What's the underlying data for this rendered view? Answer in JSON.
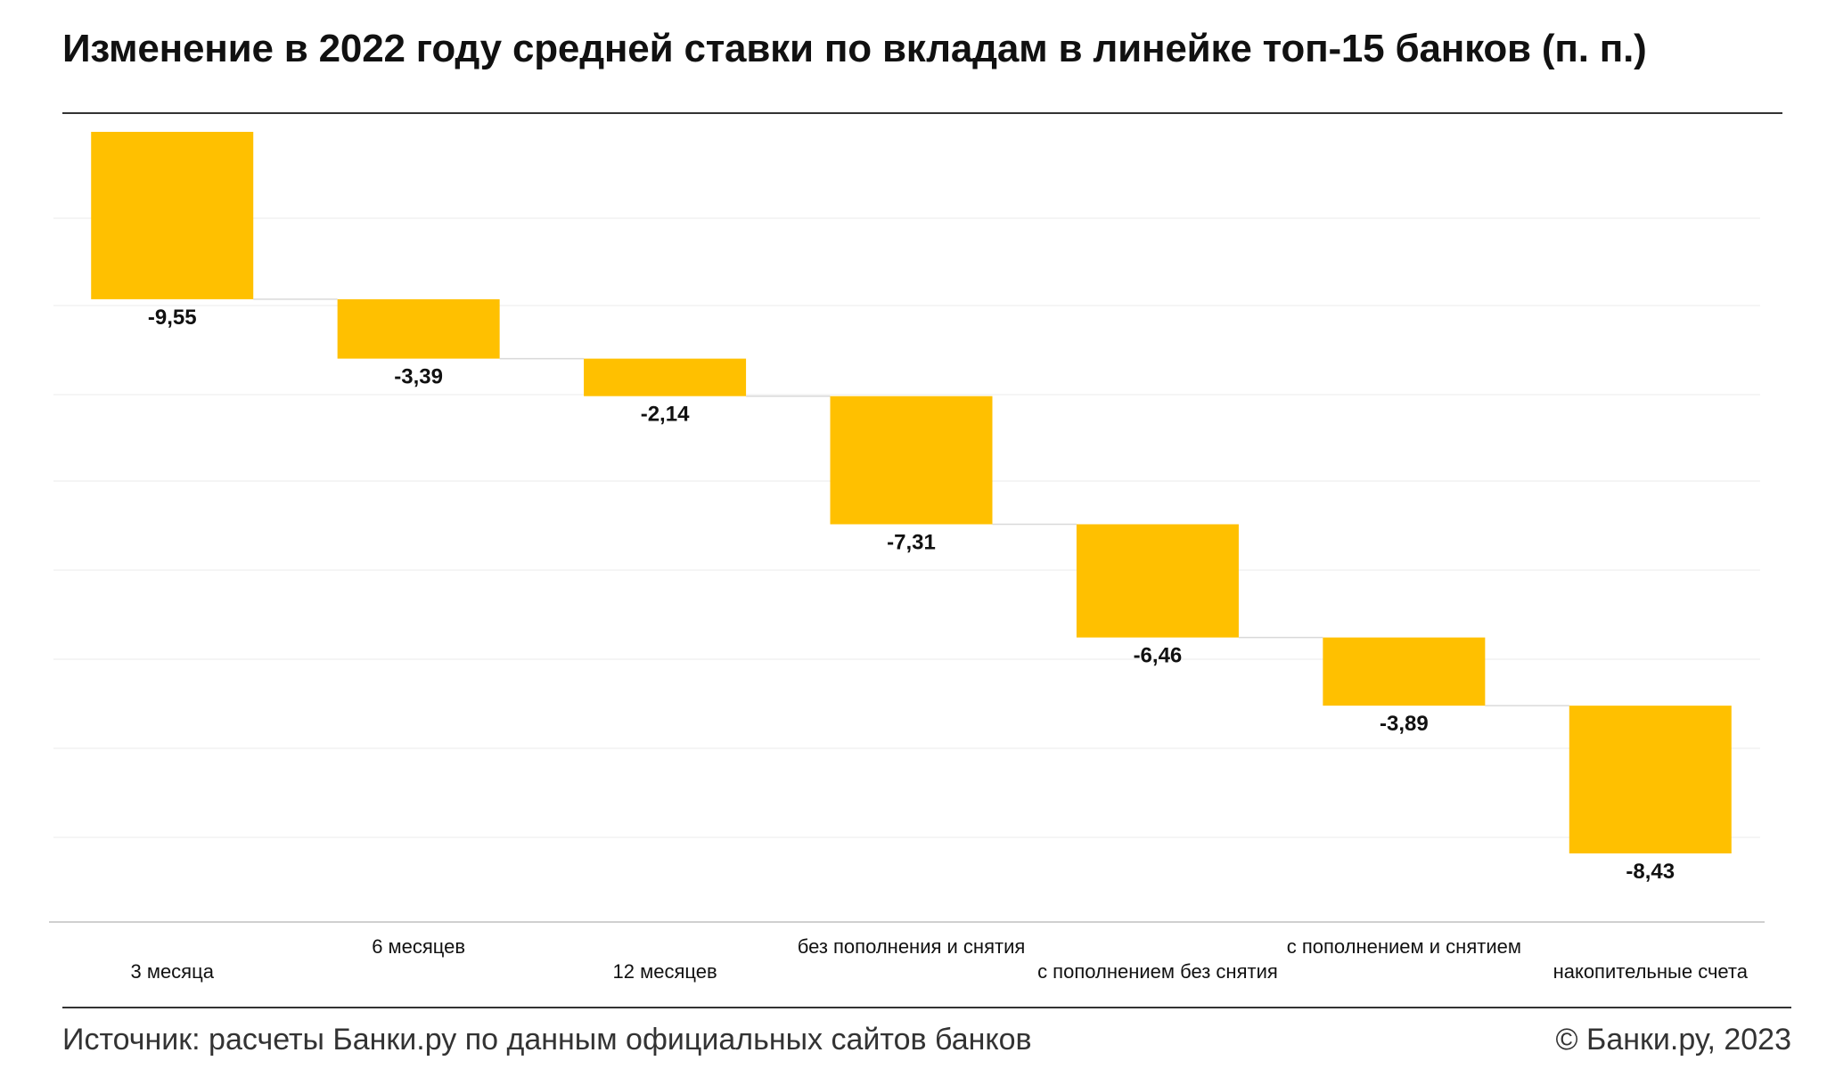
{
  "header": {
    "title": "Изменение в 2022 году средней ставки по вкладам в линейке топ-15 банков (п. п.)"
  },
  "footer": {
    "source": "Источник: расчеты Банки.ру по данным официальных сайтов банков",
    "copyright": "© Банки.ру, 2023"
  },
  "colors": {
    "bar": "#FFC000",
    "connector": "#D9D9D9",
    "grid": "#F2F2F2"
  },
  "chart_data": {
    "type": "bar",
    "subtype": "waterfall",
    "categories": [
      "3 месяца",
      "6 месяцев",
      "12 месяцев",
      "без пополнения и снятия",
      "с пополнением без снятия",
      "с пополнением и снятием",
      "накопительные счета"
    ],
    "values": [
      -9.55,
      -3.39,
      -2.14,
      -7.31,
      -6.46,
      -3.89,
      -8.43
    ],
    "value_labels": [
      "-9,55",
      "-3,39",
      "-2,14",
      "-7,31",
      "-6,46",
      "-3,89",
      "-8,43"
    ],
    "title": "Изменение в 2022 году средней ставки по вкладам в линейке топ-15 банков (п. п.)",
    "xlabel": "",
    "ylabel": "",
    "grid": true,
    "legend": "none"
  }
}
